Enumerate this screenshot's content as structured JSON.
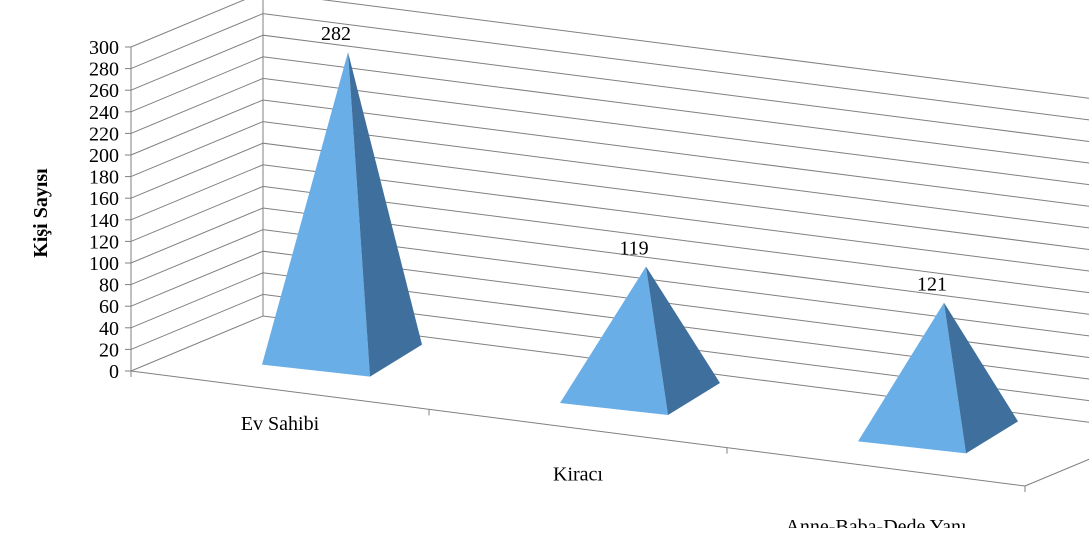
{
  "chart_data": {
    "type": "bar",
    "style": "3d-pyramid",
    "categories": [
      "Ev Sahibi",
      "Kiracı",
      "Anne-Baba-Dede Yanı"
    ],
    "values": [
      282,
      119,
      121
    ],
    "data_labels": [
      "282",
      "119",
      "121"
    ],
    "ylabel": "Kişi Sayısı",
    "ylim": [
      0,
      300
    ],
    "ytick_step": 20,
    "yticks": [
      "0",
      "20",
      "40",
      "60",
      "80",
      "100",
      "120",
      "140",
      "160",
      "180",
      "200",
      "220",
      "240",
      "260",
      "280",
      "300"
    ],
    "grid": true,
    "colors": {
      "front": "#6aaee8",
      "side": "#3f6f9c",
      "grid": "#808080"
    }
  }
}
